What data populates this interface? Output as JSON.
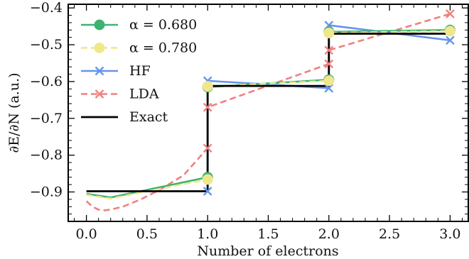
{
  "chart_data": {
    "type": "line",
    "xlabel": "Number of electrons",
    "ylabel": "∂E/∂N (a.u.)",
    "xlim": [
      -0.15,
      3.15
    ],
    "ylim": [
      -0.98,
      -0.39
    ],
    "xticks": [
      "0.0",
      "0.5",
      "1.0",
      "1.5",
      "2.0",
      "2.5",
      "3.0"
    ],
    "yticks": [
      "−0.9",
      "−0.8",
      "−0.7",
      "−0.6",
      "−0.5",
      "−0.4"
    ],
    "legend_position": "top-left",
    "series": [
      {
        "name": "α = 0.680",
        "color": "#3cb371",
        "style": "solid",
        "marker": "circle",
        "x": [
          0.0,
          0.2,
          1.0,
          1.0,
          2.0,
          2.0,
          3.0
        ],
        "y": [
          -0.905,
          -0.915,
          -0.86,
          -0.615,
          -0.595,
          -0.465,
          -0.46
        ],
        "marker_points": [
          [
            1.0,
            -0.86
          ],
          [
            1.0,
            -0.615
          ],
          [
            2.0,
            -0.595
          ],
          [
            2.0,
            -0.465
          ],
          [
            3.0,
            -0.46
          ]
        ]
      },
      {
        "name": "α = 0.780",
        "color": "#f0e68c",
        "style": "dashed",
        "marker": "circle",
        "x": [
          0.0,
          0.2,
          1.0,
          1.0,
          2.0,
          2.0,
          3.0
        ],
        "y": [
          -0.908,
          -0.918,
          -0.866,
          -0.613,
          -0.598,
          -0.468,
          -0.463
        ],
        "marker_points": [
          [
            1.0,
            -0.866
          ],
          [
            1.0,
            -0.613
          ],
          [
            2.0,
            -0.598
          ],
          [
            2.0,
            -0.468
          ],
          [
            3.0,
            -0.463
          ]
        ]
      },
      {
        "name": "HF",
        "color": "#6495ed",
        "style": "solid",
        "marker": "x",
        "x": [
          1.0,
          1.0,
          2.0,
          2.0,
          3.0
        ],
        "y": [
          -0.898,
          -0.598,
          -0.618,
          -0.447,
          -0.488
        ],
        "marker_points": [
          [
            1.0,
            -0.898
          ],
          [
            1.0,
            -0.598
          ],
          [
            2.0,
            -0.618
          ],
          [
            2.0,
            -0.447
          ],
          [
            3.0,
            -0.488
          ]
        ]
      },
      {
        "name": "LDA",
        "color": "#f08080",
        "style": "dashed",
        "marker": "x",
        "x": [
          0.0,
          0.05,
          0.1,
          0.15,
          0.2,
          0.3,
          0.45,
          0.6,
          0.8,
          1.0,
          1.0,
          2.0,
          2.0,
          3.0
        ],
        "y": [
          -0.925,
          -0.94,
          -0.948,
          -0.95,
          -0.948,
          -0.94,
          -0.92,
          -0.895,
          -0.855,
          -0.781,
          -0.67,
          -0.552,
          -0.515,
          -0.416
        ],
        "marker_points": [
          [
            1.0,
            -0.781
          ],
          [
            1.0,
            -0.67
          ],
          [
            2.0,
            -0.552
          ],
          [
            2.0,
            -0.515
          ],
          [
            3.0,
            -0.416
          ]
        ]
      },
      {
        "name": "Exact",
        "color": "#000000",
        "style": "solid",
        "marker": "none",
        "x": [
          0.0,
          1.0,
          1.0,
          2.0,
          2.0,
          3.0
        ],
        "y": [
          -0.898,
          -0.898,
          -0.612,
          -0.612,
          -0.47,
          -0.47
        ],
        "marker_points": []
      }
    ]
  }
}
